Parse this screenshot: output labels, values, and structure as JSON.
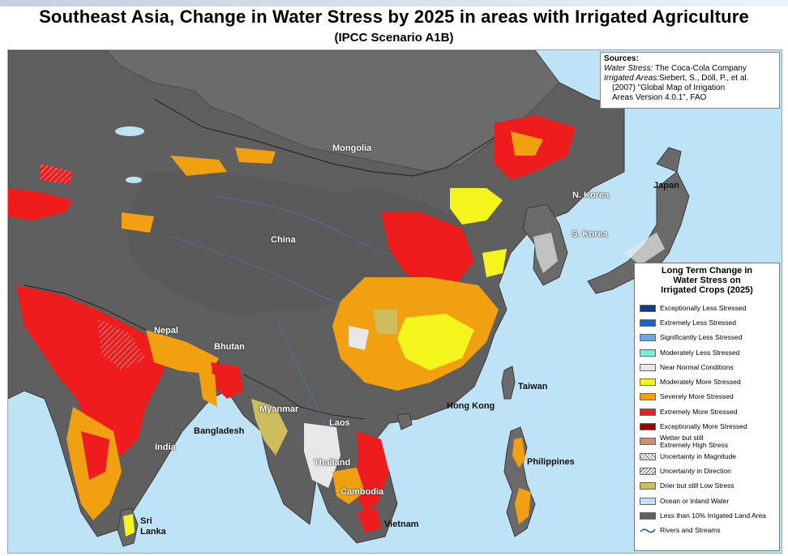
{
  "header": {
    "title": "Southeast Asia, Change in Water Stress by 2025 in areas with Irrigated Agriculture",
    "subtitle": "(IPCC Scenario A1B)"
  },
  "sources": {
    "heading": "Sources:",
    "ws_label": "Water Stress:",
    "ws_text": "The Coca-Cola Company",
    "ia_label": "Irrigated Areas:",
    "ia_text1": "Siebert, S., Döll, P., et al.",
    "ia_text2": "(2007) \"Global Map of Irrigation",
    "ia_text3": "Areas Version 4.0.1\", FAO"
  },
  "labels": {
    "mongolia": "Mongolia",
    "china": "China",
    "nkorea": "N. Korea",
    "skorea": "S. Korea",
    "japan": "Japan",
    "nepal": "Nepal",
    "bhutan": "Bhutan",
    "bangladesh": "Bangladesh",
    "india": "India",
    "myanmar": "Myanmar",
    "laos": "Laos",
    "thailand": "Thailand",
    "cambodia": "Cambodia",
    "vietnam": "Vietnam",
    "hongkong": "Hong Kong",
    "taiwan": "Taiwan",
    "philippines": "Philippines",
    "srilanka1": "Sri",
    "srilanka2": "Lanka"
  },
  "legend": {
    "title1": "Long Term Change in",
    "title2": "Water Stress on",
    "title3": "Irrigated Crops (2025)",
    "items": [
      {
        "label": "Exceptionally Less Stressed",
        "color": "#0a3d8f"
      },
      {
        "label": "Extremely Less Stressed",
        "color": "#1464d6"
      },
      {
        "label": "Significantly Less Stressed",
        "color": "#6aa8ea"
      },
      {
        "label": "Moderately Less Stressed",
        "color": "#7fead8"
      },
      {
        "label": "Near Normal Conditions",
        "color": "#e8e8e8"
      },
      {
        "label": "Moderately More Stressed",
        "color": "#f5f51e"
      },
      {
        "label": "Severely More Stressed",
        "color": "#f0a010"
      },
      {
        "label": "Extremely More Stressed",
        "color": "#ee1c1c"
      },
      {
        "label": "Exceptionally More Stressed",
        "color": "#a00000"
      },
      {
        "label": "Wetter but still",
        "label2": "Extremely High Stress",
        "color": "#d98c66"
      },
      {
        "label": "Uncertainty in Magnitude",
        "color": "hatch"
      },
      {
        "label": "Uncertainty in Direction",
        "color": "hatch2"
      },
      {
        "label": "Drier but still Low Stress",
        "color": "#cdbd5c"
      },
      {
        "label": "Ocean or Inland Water",
        "color": "#bfe3f6"
      },
      {
        "label": "Less than 10% Irrigated Land Area",
        "color": "#5f5f5f"
      },
      {
        "label": "Rivers and Streams",
        "color": "river"
      }
    ]
  }
}
